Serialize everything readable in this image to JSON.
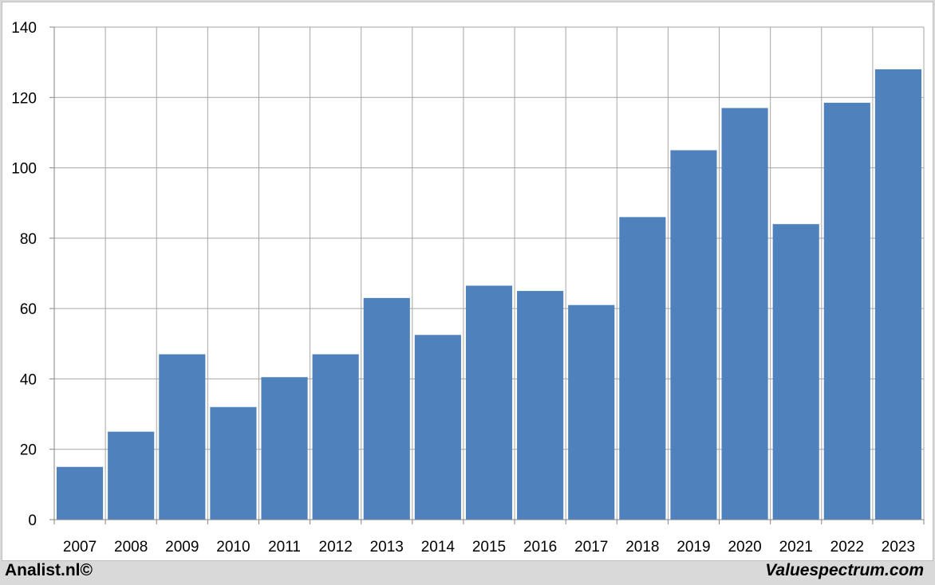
{
  "chart_data": {
    "type": "bar",
    "categories": [
      "2007",
      "2008",
      "2009",
      "2010",
      "2011",
      "2012",
      "2013",
      "2014",
      "2015",
      "2016",
      "2017",
      "2018",
      "2019",
      "2020",
      "2021",
      "2022",
      "2023"
    ],
    "values": [
      15,
      25,
      47,
      32,
      40.5,
      47,
      63,
      52.5,
      66.5,
      65,
      61,
      86,
      105,
      117,
      84,
      118.5,
      128
    ],
    "title": "",
    "xlabel": "",
    "ylabel": "",
    "ylim": [
      0,
      140
    ],
    "yticks": [
      "0",
      "20",
      "40",
      "60",
      "80",
      "100",
      "120",
      "140"
    ],
    "grid": true,
    "bar_color": "#4f81bd"
  },
  "footer": {
    "left": "Analist.nl©",
    "right": "Valuespectrum.com"
  }
}
